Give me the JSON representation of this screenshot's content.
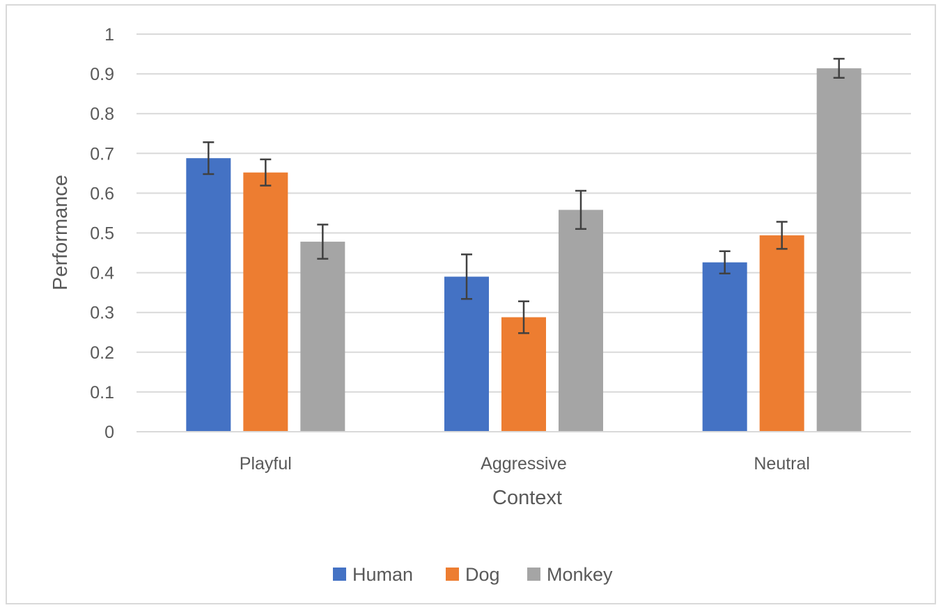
{
  "chart_data": {
    "type": "bar",
    "title": "",
    "xlabel": "Context",
    "ylabel": "Performance",
    "categories": [
      "Playful",
      "Aggressive",
      "Neutral"
    ],
    "ylim": [
      0,
      1
    ],
    "yticks": [
      "0",
      "0.1",
      "0.2",
      "0.3",
      "0.4",
      "0.5",
      "0.6",
      "0.7",
      "0.8",
      "0.9",
      "1"
    ],
    "grid": true,
    "legend_position": "bottom",
    "series": [
      {
        "name": "Human",
        "color": "#4472c4",
        "values": [
          0.688,
          0.39,
          0.426
        ],
        "errors": [
          0.04,
          0.056,
          0.028
        ]
      },
      {
        "name": "Dog",
        "color": "#ed7d31",
        "values": [
          0.652,
          0.288,
          0.494
        ],
        "errors": [
          0.033,
          0.04,
          0.034
        ]
      },
      {
        "name": "Monkey",
        "color": "#a5a5a5",
        "values": [
          0.478,
          0.558,
          0.914
        ],
        "errors": [
          0.043,
          0.048,
          0.024
        ]
      }
    ]
  }
}
